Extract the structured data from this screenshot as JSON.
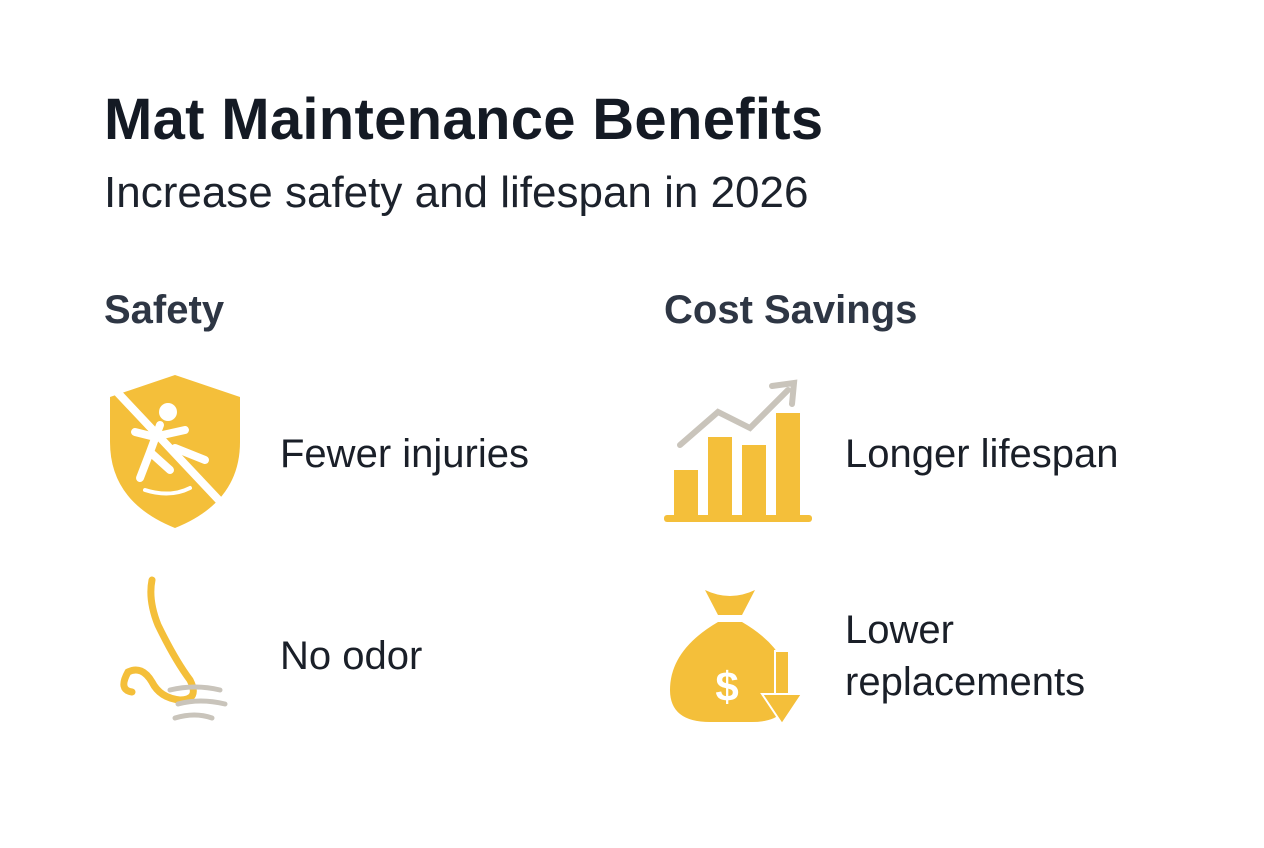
{
  "header": {
    "title": "Mat Maintenance Benefits",
    "subtitle": "Increase safety and lifespan in 2026"
  },
  "sections": [
    {
      "heading": "Safety",
      "items": [
        {
          "label": "Fewer injuries"
        },
        {
          "label": "No odor"
        }
      ]
    },
    {
      "heading": "Cost Savings",
      "items": [
        {
          "label": "Longer lifespan"
        },
        {
          "label": "Lower replacements"
        }
      ]
    }
  ]
}
